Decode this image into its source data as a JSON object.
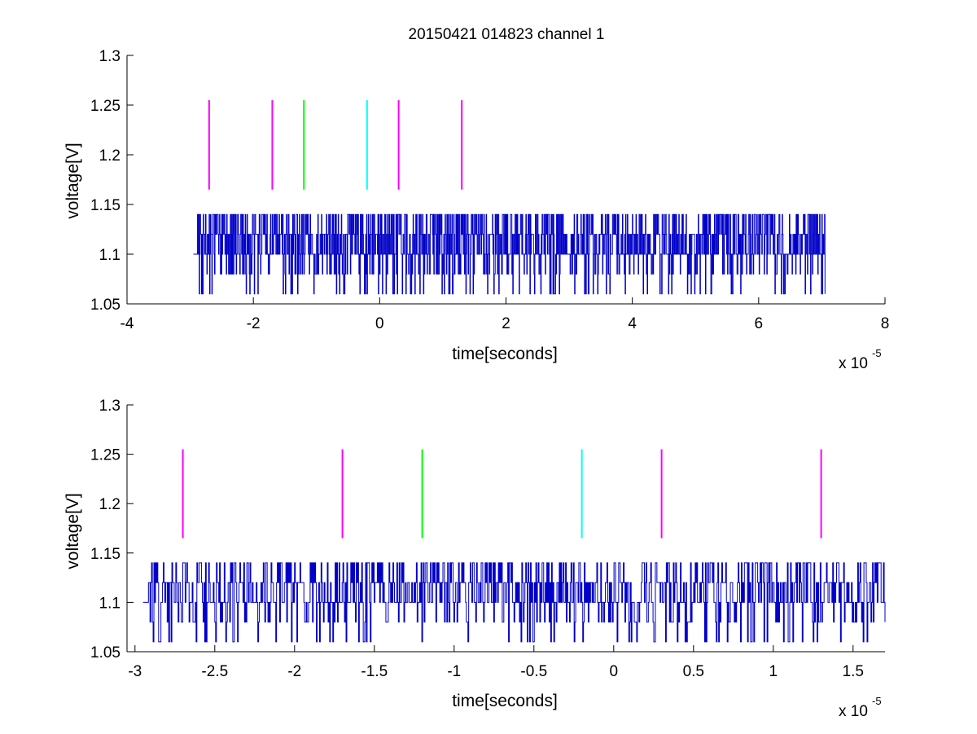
{
  "colors": {
    "signal": "#0000c8",
    "magenta": "#ff00ff",
    "green": "#00ff00",
    "cyan": "#00ffff",
    "axis": "#000000",
    "background": "#ffffff"
  },
  "chart_data": [
    {
      "type": "line",
      "title": "20150421 014823 channel 1",
      "xlabel": "time[seconds]",
      "ylabel": "voltage[V]",
      "x_exponent_label": "x 10",
      "x_exponent_power": "-5",
      "x_multiplier": 1e-05,
      "xlim": [
        -4,
        8
      ],
      "ylim": [
        1.05,
        1.3
      ],
      "xticks": [
        -4,
        -2,
        0,
        2,
        4,
        6,
        8
      ],
      "xtick_labels": [
        "-4",
        "-2",
        "0",
        "2",
        "4",
        "6",
        "8"
      ],
      "yticks": [
        1.05,
        1.1,
        1.15,
        1.2,
        1.25,
        1.3
      ],
      "ytick_labels": [
        "1.05",
        "1.1",
        "1.15",
        "1.2",
        "1.25",
        "1.3"
      ],
      "grid": false,
      "signal": {
        "x_start": -2.95,
        "x_end": 7.05,
        "levels": [
          1.06,
          1.08,
          1.1,
          1.12,
          1.14
        ],
        "baseline": 1.1
      },
      "markers": [
        {
          "x": -2.7,
          "y_from": 1.165,
          "y_to": 1.255,
          "color": "magenta"
        },
        {
          "x": -1.7,
          "y_from": 1.165,
          "y_to": 1.255,
          "color": "magenta"
        },
        {
          "x": -1.2,
          "y_from": 1.165,
          "y_to": 1.255,
          "color": "green"
        },
        {
          "x": -0.2,
          "y_from": 1.165,
          "y_to": 1.255,
          "color": "cyan"
        },
        {
          "x": 0.3,
          "y_from": 1.165,
          "y_to": 1.255,
          "color": "magenta"
        },
        {
          "x": 1.3,
          "y_from": 1.165,
          "y_to": 1.255,
          "color": "magenta"
        }
      ]
    },
    {
      "type": "line",
      "title": "",
      "xlabel": "time[seconds]",
      "ylabel": "voltage[V]",
      "x_exponent_label": "x 10",
      "x_exponent_power": "-5",
      "x_multiplier": 1e-05,
      "xlim": [
        -3.05,
        1.7
      ],
      "ylim": [
        1.05,
        1.3
      ],
      "xticks": [
        -3,
        -2.5,
        -2,
        -1.5,
        -1,
        -0.5,
        0,
        0.5,
        1,
        1.5
      ],
      "xtick_labels": [
        "-3",
        "-2.5",
        "-2",
        "-1.5",
        "-1",
        "-0.5",
        "0",
        "0.5",
        "1",
        "1.5"
      ],
      "yticks": [
        1.05,
        1.1,
        1.15,
        1.2,
        1.25,
        1.3
      ],
      "ytick_labels": [
        "1.05",
        "1.1",
        "1.15",
        "1.2",
        "1.25",
        "1.3"
      ],
      "grid": false,
      "signal": {
        "x_start": -2.95,
        "x_end": 1.7,
        "levels": [
          1.06,
          1.08,
          1.1,
          1.12,
          1.14
        ],
        "baseline": 1.1
      },
      "markers": [
        {
          "x": -2.7,
          "y_from": 1.165,
          "y_to": 1.255,
          "color": "magenta"
        },
        {
          "x": -1.7,
          "y_from": 1.165,
          "y_to": 1.255,
          "color": "magenta"
        },
        {
          "x": -1.2,
          "y_from": 1.165,
          "y_to": 1.255,
          "color": "green"
        },
        {
          "x": -0.2,
          "y_from": 1.165,
          "y_to": 1.255,
          "color": "cyan"
        },
        {
          "x": 0.3,
          "y_from": 1.165,
          "y_to": 1.255,
          "color": "magenta"
        },
        {
          "x": 1.3,
          "y_from": 1.165,
          "y_to": 1.255,
          "color": "magenta"
        }
      ]
    }
  ]
}
